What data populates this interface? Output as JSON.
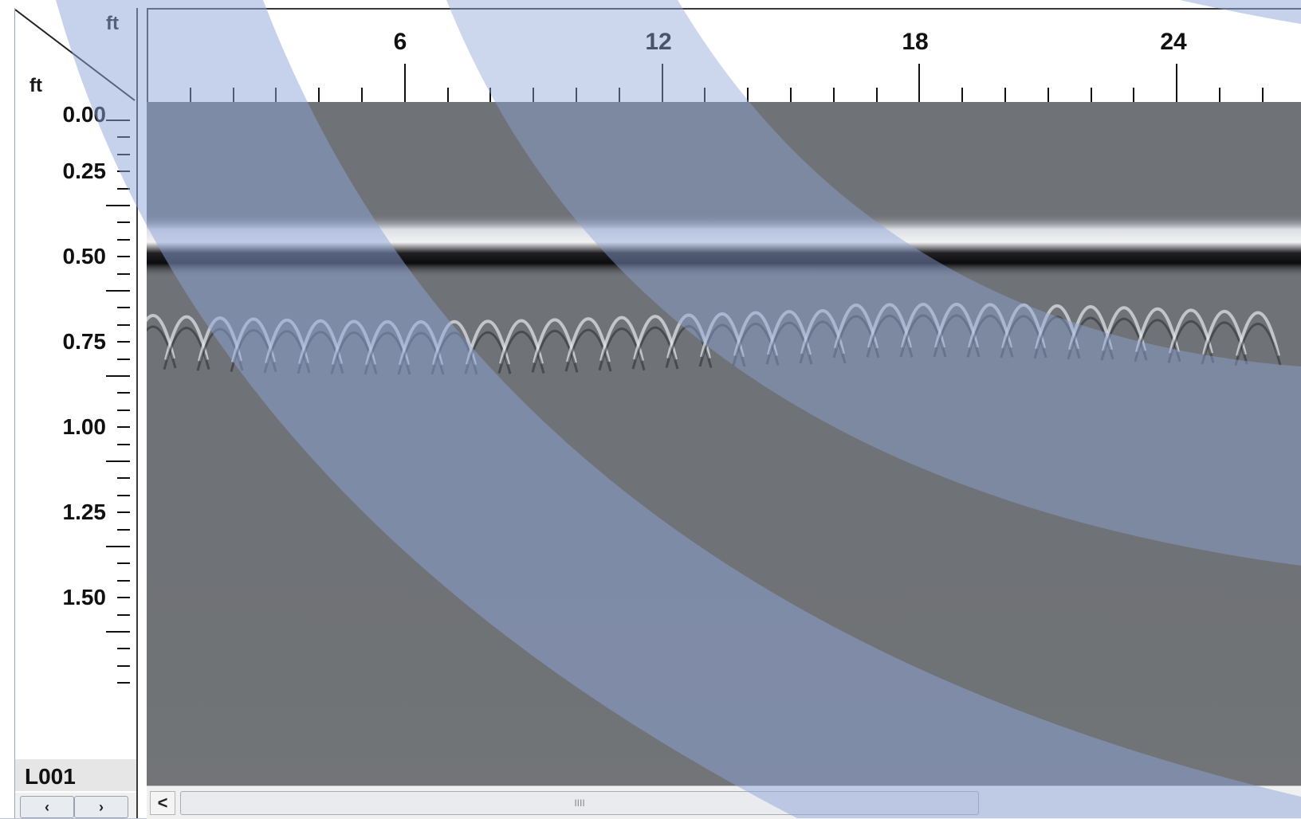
{
  "window": {
    "x_unit": "ft",
    "y_unit": "ft"
  },
  "distance_axis": {
    "labels": [
      "6",
      "12",
      "18",
      "24"
    ]
  },
  "depth_axis": {
    "labels": [
      "0.00",
      "0.25",
      "0.50",
      "0.75",
      "1.00",
      "1.25",
      "1.50"
    ]
  },
  "line_panel": {
    "line_name": "L001",
    "prev_label": "‹",
    "next_label": "›"
  },
  "scrollbar": {
    "left_arrow": "<",
    "grip": "IIII"
  },
  "colors": {
    "accent_blue": "#a9b8dc",
    "radargram_bg": "#6e7175",
    "ruler_text": "#111111"
  }
}
